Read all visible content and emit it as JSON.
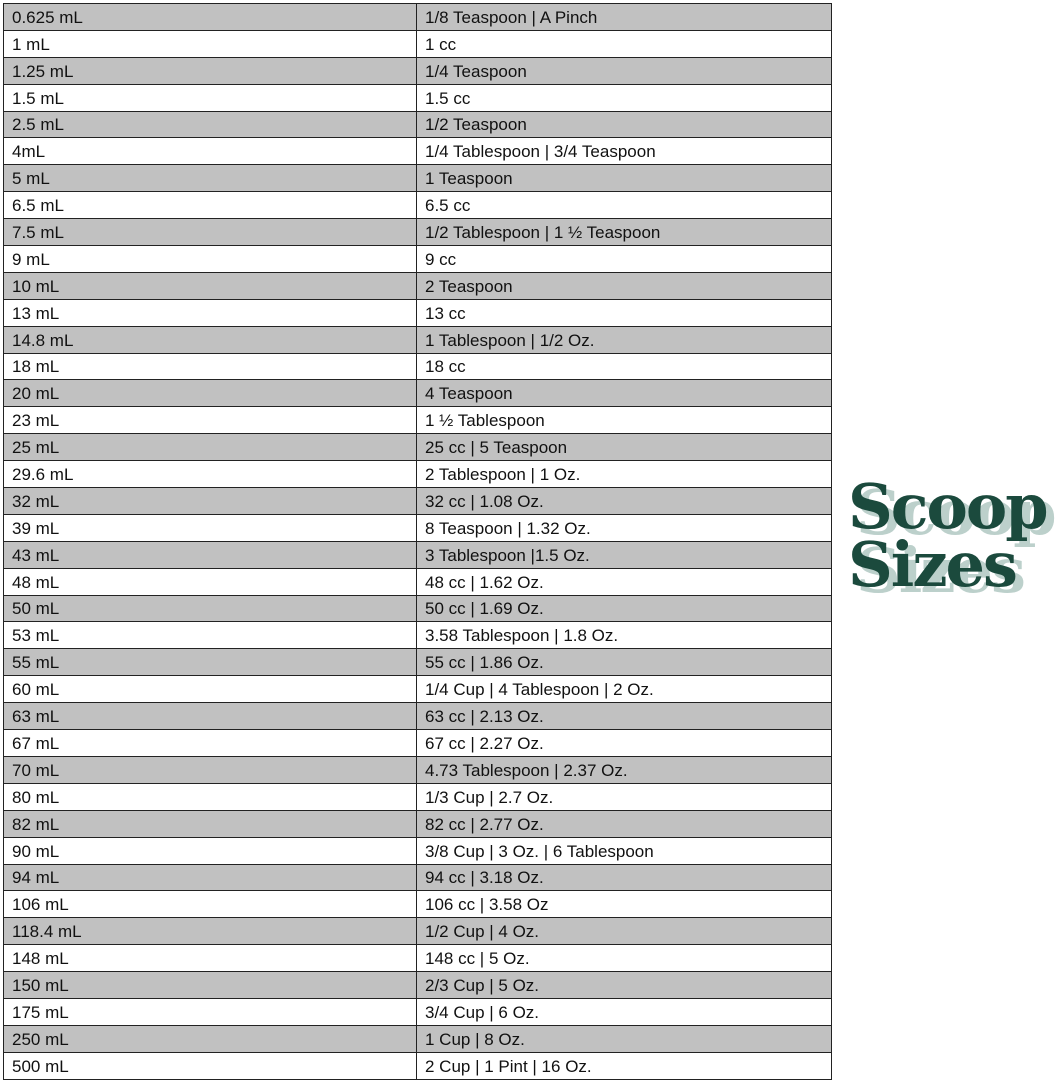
{
  "rows": [
    [
      "0.625 mL",
      "1/8 Teaspoon | A Pinch"
    ],
    [
      "1 mL",
      "1 cc"
    ],
    [
      "1.25 mL",
      "1/4 Teaspoon"
    ],
    [
      "1.5 mL",
      "1.5 cc"
    ],
    [
      "2.5 mL",
      "1/2 Teaspoon"
    ],
    [
      "4mL",
      "1/4 Tablespoon | 3/4 Teaspoon"
    ],
    [
      "5 mL",
      "1 Teaspoon"
    ],
    [
      "6.5 mL",
      "6.5 cc"
    ],
    [
      "7.5 mL",
      "1/2 Tablespoon | 1 ½ Teaspoon"
    ],
    [
      "9 mL",
      "9 cc"
    ],
    [
      "10 mL",
      "2 Teaspoon"
    ],
    [
      "13 mL",
      "13 cc"
    ],
    [
      "14.8 mL",
      "1 Tablespoon | 1/2 Oz."
    ],
    [
      "18 mL",
      "18 cc"
    ],
    [
      "20 mL",
      "4 Teaspoon"
    ],
    [
      "23 mL",
      "1 ½ Tablespoon"
    ],
    [
      "25 mL",
      "25 cc | 5 Teaspoon"
    ],
    [
      "29.6 mL",
      "2 Tablespoon | 1 Oz."
    ],
    [
      "32 mL",
      "32 cc | 1.08 Oz."
    ],
    [
      "39 mL",
      "8 Teaspoon | 1.32 Oz."
    ],
    [
      "43 mL",
      "3 Tablespoon |1.5 Oz."
    ],
    [
      "48 mL",
      "48 cc | 1.62 Oz."
    ],
    [
      "50 mL",
      "50 cc | 1.69 Oz."
    ],
    [
      "53 mL",
      "3.58 Tablespoon | 1.8 Oz."
    ],
    [
      "55 mL",
      "55 cc | 1.86 Oz."
    ],
    [
      "60 mL",
      "1/4 Cup | 4 Tablespoon | 2 Oz."
    ],
    [
      "63 mL",
      "63 cc | 2.13 Oz."
    ],
    [
      "67 mL",
      "67 cc | 2.27 Oz."
    ],
    [
      "70 mL",
      "4.73 Tablespoon | 2.37 Oz."
    ],
    [
      "80 mL",
      "1/3 Cup | 2.7 Oz."
    ],
    [
      "82 mL",
      "82 cc | 2.77 Oz."
    ],
    [
      "90 mL",
      "3/8 Cup | 3 Oz. | 6 Tablespoon"
    ],
    [
      "94 mL",
      "94 cc | 3.18 Oz."
    ],
    [
      "106 mL",
      "106 cc | 3.58 Oz"
    ],
    [
      "118.4 mL",
      "1/2 Cup | 4 Oz."
    ],
    [
      "148 mL",
      "148 cc | 5 Oz."
    ],
    [
      "150 mL",
      "2/3 Cup | 5 Oz."
    ],
    [
      "175 mL",
      "3/4 Cup | 6 Oz."
    ],
    [
      "250 mL",
      "1 Cup | 8 Oz."
    ],
    [
      "500 mL",
      "2 Cup | 1 Pint | 16 Oz."
    ]
  ],
  "logo": {
    "line1": "Scoop",
    "line2": "Sizes",
    "color": "#1b4a3d",
    "shadow_color": "#bcd0cb"
  },
  "row_colors": {
    "odd": "#c1c1c1",
    "even": "#ffffff"
  }
}
